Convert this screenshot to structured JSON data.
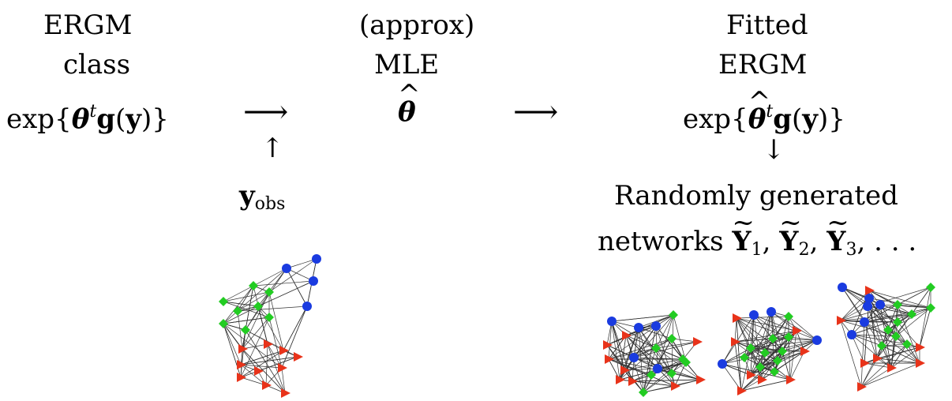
{
  "col1": {
    "line1": "ERGM",
    "line2": "class",
    "formula": {
      "pre": "exp{",
      "theta": "θ",
      "sup": "t",
      "g": "g",
      "paren_open": "(",
      "y": "y",
      "post": ")}"
    }
  },
  "col2": {
    "line1": "(approx)",
    "line2": "MLE",
    "theta_hat": "θ",
    "hat": "^"
  },
  "col3": {
    "line1": "Fitted",
    "line2": "ERGM",
    "formula": {
      "pre": "exp{",
      "theta": "θ",
      "hat": "^",
      "sup": "t",
      "g": "g",
      "paren_open": "(",
      "y": "y",
      "post": ")}"
    }
  },
  "observed": {
    "y": "y",
    "sub": "obs"
  },
  "generated": {
    "line1": "Randomly generated",
    "line2_text": "networks ",
    "Y": "Y",
    "tilde": "~",
    "sub1": "1",
    "sub2": "2",
    "sub3": "3",
    "sep": ", ",
    "ellipsis": ", . . ."
  },
  "arrows": {
    "right": "⟶",
    "up": "↑",
    "down": "↓"
  },
  "node_colors": {
    "circle": "#1a3be0",
    "diamond": "#22cc22",
    "triangle": "#e8331a"
  },
  "networks": [
    "observed-network",
    "simulated-network-1",
    "simulated-network-2",
    "simulated-network-3"
  ]
}
